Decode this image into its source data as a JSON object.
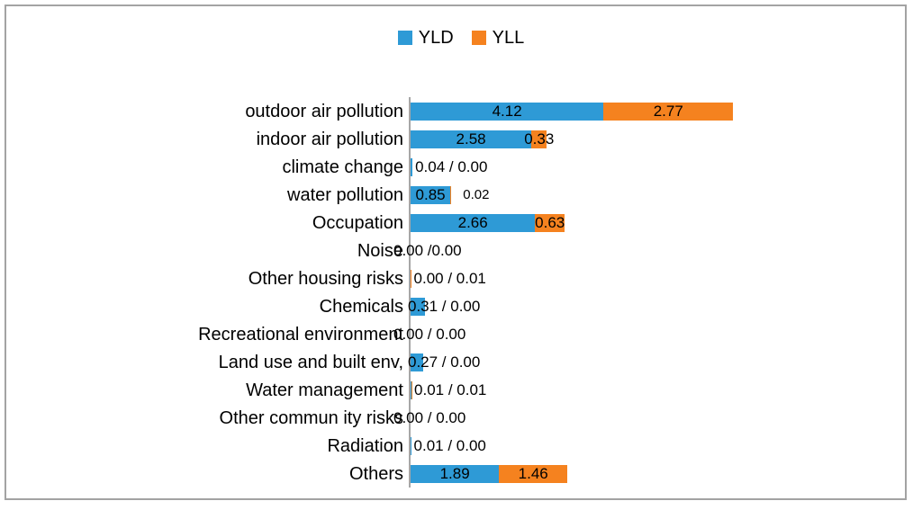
{
  "chart_data": {
    "type": "bar",
    "orientation": "horizontal",
    "stacked": true,
    "title": "",
    "xlabel": "",
    "ylabel": "",
    "x_axis_ticks_visible": false,
    "grid": false,
    "legend": [
      "YLD",
      "YLL"
    ],
    "legend_position": "top-center",
    "colors": {
      "yld": "#2e9ad6",
      "yll": "#f5821f",
      "axis": "#a6a6a6",
      "text": "#000000",
      "frame": "#a3a3a3"
    },
    "categories": [
      "outdoor air pollution",
      "indoor air pollution",
      "climate change",
      "water pollution",
      "Occupation",
      "Noise",
      "Other housing risks",
      "Chemicals",
      "Recreational environment",
      "Land use and built env,",
      "Water management",
      "Other commun ity risks",
      "Radiation",
      "Others"
    ],
    "series": [
      {
        "name": "YLD",
        "values": [
          4.12,
          2.58,
          0.04,
          0.85,
          2.66,
          0.0,
          0.0,
          0.31,
          0.0,
          0.27,
          0.01,
          0.0,
          0.01,
          1.89
        ]
      },
      {
        "name": "YLL",
        "values": [
          2.77,
          0.33,
          0.0,
          0.02,
          0.63,
          0.0,
          0.01,
          0.0,
          0.0,
          0.0,
          0.01,
          0.0,
          0.0,
          1.46
        ]
      }
    ],
    "rows": [
      {
        "category": "outdoor air pollution",
        "yld": 4.12,
        "yll": 2.77,
        "yld_label": "4.12",
        "yll_label": "2.77"
      },
      {
        "category": "indoor air pollution",
        "yld": 2.58,
        "yll": 0.33,
        "yld_label": "2.58",
        "yll_label": "0.33"
      },
      {
        "category": "climate change",
        "yld": 0.04,
        "yll": 0.0,
        "combo_label": "0.04 / 0.00"
      },
      {
        "category": "water pollution",
        "yld": 0.85,
        "yll": 0.02,
        "yld_label": "0.85",
        "outside_label": "0.02"
      },
      {
        "category": "Occupation",
        "yld": 2.66,
        "yll": 0.63,
        "yld_label": "2.66",
        "yll_label": "0.63"
      },
      {
        "category": "Noise",
        "yld": 0.0,
        "yll": 0.0,
        "combo_label": "0.00 /0.00"
      },
      {
        "category": "Other housing risks",
        "yld": 0.0,
        "yll": 0.01,
        "combo_label": "0.00 / 0.01"
      },
      {
        "category": "Chemicals",
        "yld": 0.31,
        "yll": 0.0,
        "combo_label": "0.31 / 0.00"
      },
      {
        "category": "Recreational environment",
        "yld": 0.0,
        "yll": 0.0,
        "combo_label": "0.00 / 0.00"
      },
      {
        "category": "Land use and built env,",
        "yld": 0.27,
        "yll": 0.0,
        "combo_label": "0.27 / 0.00"
      },
      {
        "category": "Water management",
        "yld": 0.01,
        "yll": 0.01,
        "combo_label": "0.01 / 0.01"
      },
      {
        "category": "Other commun ity risks",
        "yld": 0.0,
        "yll": 0.0,
        "combo_label": "0.00 / 0.00"
      },
      {
        "category": "Radiation",
        "yld": 0.01,
        "yll": 0.0,
        "combo_label": "0.01 / 0.00"
      },
      {
        "category": "Others",
        "yld": 1.89,
        "yll": 1.46,
        "yld_label": "1.89",
        "yll_label": "1.46"
      }
    ]
  }
}
